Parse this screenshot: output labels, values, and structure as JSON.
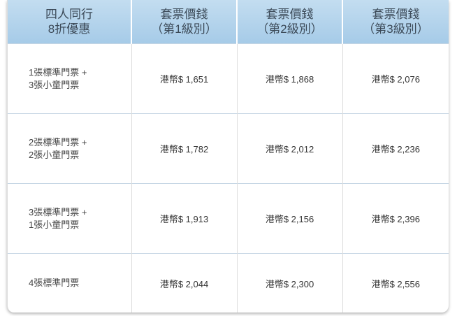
{
  "headers": [
    [
      "四人同行",
      "8折優惠"
    ],
    [
      "套票價錢",
      "（第1級別）"
    ],
    [
      "套票價錢",
      "（第2級別）"
    ],
    [
      "套票價錢",
      "（第3級別）"
    ]
  ],
  "rows": [
    {
      "label": [
        "1張標準門票 +",
        "3張小童門票"
      ],
      "prices": [
        "港幣$ 1,651",
        "港幣$ 1,868",
        "港幣$ 2,076"
      ]
    },
    {
      "label": [
        "2張標準門票 +",
        "2張小童門票"
      ],
      "prices": [
        "港幣$ 1,782",
        "港幣$ 2,012",
        "港幣$ 2,236"
      ]
    },
    {
      "label": [
        "3張標準門票 +",
        "1張小童門票"
      ],
      "prices": [
        "港幣$ 1,913",
        "港幣$ 2,156",
        "港幣$ 2,396"
      ]
    },
    {
      "label": [
        "4張標準門票"
      ],
      "prices": [
        "港幣$ 2,044",
        "港幣$ 2,300",
        "港幣$ 2,556"
      ]
    }
  ]
}
